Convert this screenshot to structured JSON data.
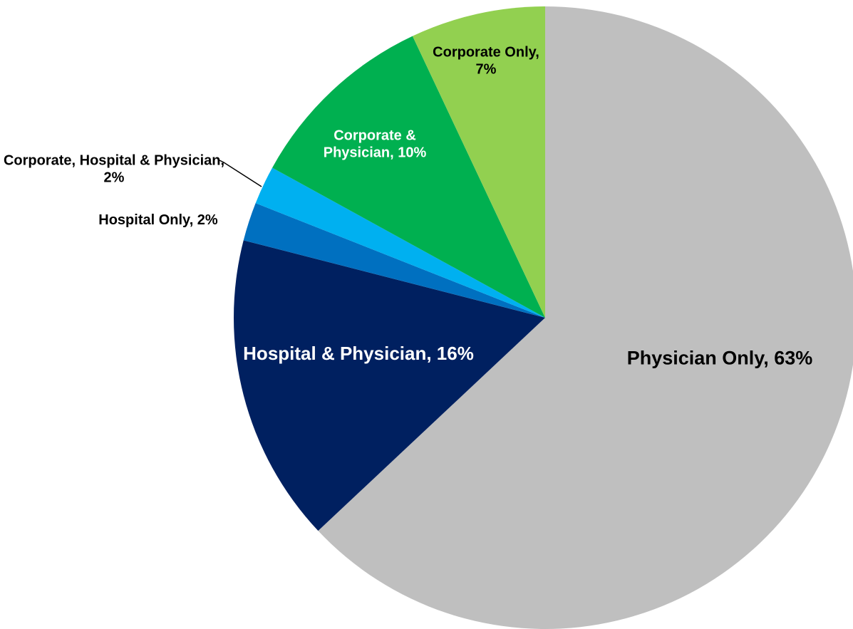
{
  "chart_data": {
    "type": "pie",
    "values": [
      63,
      16,
      2,
      2,
      10,
      7
    ],
    "value_labels": [
      "Physician Only, 63%",
      "Hospital & Physician, 16%",
      "Hospital Only, 2%",
      "Corporate, Hospital & Physician, 2%",
      "Corporate & Physician, 10%",
      "Corporate Only, 7%"
    ],
    "colors": [
      "#bfbfbf",
      "#002060",
      "#0070c0",
      "#00b0f0",
      "#00b050",
      "#92d050"
    ]
  }
}
